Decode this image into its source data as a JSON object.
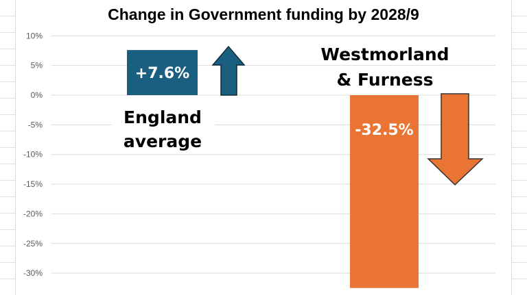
{
  "chart_data": {
    "type": "bar",
    "title": "Change in Government funding by 2028/9",
    "categories": [
      "England average",
      "Westmorland & Furness"
    ],
    "category_labels": [
      [
        "England",
        "average"
      ],
      [
        "Westmorland",
        "& Furness"
      ]
    ],
    "values": [
      7.6,
      -32.5
    ],
    "data_labels": [
      "+7.6%",
      "-32.5%"
    ],
    "colors": [
      "#1a5e80",
      "#ea7434"
    ],
    "arrows": [
      "up",
      "down"
    ],
    "ylim": [
      -32.5,
      10
    ],
    "yticks": [
      10,
      5,
      0,
      -5,
      -10,
      -15,
      -20,
      -25,
      -30
    ],
    "ytick_labels": [
      "10%",
      "5%",
      "0%",
      "-5%",
      "-10%",
      "-15%",
      "-20%",
      "-25%",
      "-30%"
    ],
    "grid": true,
    "xlabel": "",
    "ylabel": ""
  }
}
